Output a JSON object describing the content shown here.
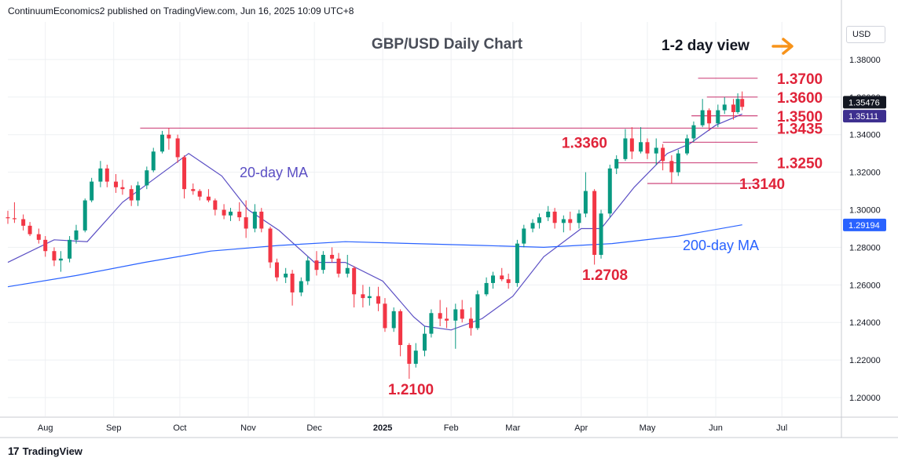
{
  "header": {
    "publisher_line": "ContinuumEconomics2 published on TradingView.com, Jun 16, 2025 10:09 UTC+8"
  },
  "footer": {
    "brand": "TradingView"
  },
  "currency_button": "USD",
  "colors": {
    "up": "#089981",
    "down": "#f23645",
    "ma20": "#5b4fc4",
    "ma200": "#2962ff",
    "level_line": "#c2185b",
    "annot_red": "#e0243a",
    "arrow": "#f7931a"
  },
  "chart_data": {
    "type": "candlestick",
    "title": "GBP/USD Daily Chart",
    "view_label": "1-2 day view",
    "ylim": [
      1.19,
      1.4
    ],
    "y_ticks": [
      "1.20000",
      "1.22000",
      "1.24000",
      "1.26000",
      "1.28000",
      "1.30000",
      "1.32000",
      "1.34000",
      "1.36000",
      "1.38000"
    ],
    "x_ticks": [
      "Aug",
      "Sep",
      "Oct",
      "Nov",
      "Dec",
      "2025",
      "Feb",
      "Mar",
      "Apr",
      "May",
      "Jun",
      "Jul"
    ],
    "x_range": [
      "2024-07-15",
      "2025-07-28"
    ],
    "last_price": "1.35476",
    "ma20_label_value": "1.35111",
    "ma200_label_value": "1.29194",
    "series": [
      {
        "name": "20-day MA",
        "points": [
          [
            "2024-07-15",
            1.272
          ],
          [
            "2024-08-05",
            1.284
          ],
          [
            "2024-08-20",
            1.283
          ],
          [
            "2024-09-05",
            1.304
          ],
          [
            "2024-09-20",
            1.317
          ],
          [
            "2024-10-05",
            1.33
          ],
          [
            "2024-10-20",
            1.318
          ],
          [
            "2024-11-01",
            1.3
          ],
          [
            "2024-11-15",
            1.289
          ],
          [
            "2024-12-01",
            1.272
          ],
          [
            "2024-12-15",
            1.272
          ],
          [
            "2025-01-01",
            1.262
          ],
          [
            "2025-01-15",
            1.243
          ],
          [
            "2025-01-20",
            1.238
          ],
          [
            "2025-02-01",
            1.236
          ],
          [
            "2025-02-15",
            1.242
          ],
          [
            "2025-03-01",
            1.254
          ],
          [
            "2025-03-15",
            1.275
          ],
          [
            "2025-04-01",
            1.29
          ],
          [
            "2025-04-10",
            1.29
          ],
          [
            "2025-04-25",
            1.312
          ],
          [
            "2025-05-10",
            1.33
          ],
          [
            "2025-05-20",
            1.335
          ],
          [
            "2025-06-01",
            1.345
          ],
          [
            "2025-06-13",
            1.351
          ]
        ]
      },
      {
        "name": "200-day MA",
        "points": [
          [
            "2024-07-15",
            1.259
          ],
          [
            "2024-08-15",
            1.265
          ],
          [
            "2024-09-15",
            1.272
          ],
          [
            "2024-10-15",
            1.278
          ],
          [
            "2024-11-15",
            1.281
          ],
          [
            "2024-12-15",
            1.283
          ],
          [
            "2025-01-15",
            1.282
          ],
          [
            "2025-02-15",
            1.281
          ],
          [
            "2025-03-15",
            1.28
          ],
          [
            "2025-04-15",
            1.282
          ],
          [
            "2025-05-15",
            1.286
          ],
          [
            "2025-06-13",
            1.292
          ]
        ]
      }
    ],
    "candles": [
      [
        "2024-07-15",
        1.296,
        1.2995,
        1.2925,
        1.2955
      ],
      [
        "2024-07-18",
        1.2955,
        1.304,
        1.293,
        1.295
      ],
      [
        "2024-07-22",
        1.295,
        1.2975,
        1.289,
        1.2915
      ],
      [
        "2024-07-25",
        1.2915,
        1.2935,
        1.286,
        1.287
      ],
      [
        "2024-07-29",
        1.287,
        1.29,
        1.282,
        1.284
      ],
      [
        "2024-08-01",
        1.284,
        1.286,
        1.275,
        1.278
      ],
      [
        "2024-08-05",
        1.278,
        1.28,
        1.27,
        1.273
      ],
      [
        "2024-08-08",
        1.273,
        1.278,
        1.267,
        1.274
      ],
      [
        "2024-08-12",
        1.274,
        1.286,
        1.272,
        1.284
      ],
      [
        "2024-08-15",
        1.284,
        1.292,
        1.282,
        1.289
      ],
      [
        "2024-08-19",
        1.289,
        1.306,
        1.288,
        1.305
      ],
      [
        "2024-08-22",
        1.305,
        1.317,
        1.304,
        1.315
      ],
      [
        "2024-08-26",
        1.315,
        1.326,
        1.312,
        1.322
      ],
      [
        "2024-08-29",
        1.322,
        1.324,
        1.312,
        1.315
      ],
      [
        "2024-09-02",
        1.315,
        1.319,
        1.309,
        1.312
      ],
      [
        "2024-09-05",
        1.312,
        1.316,
        1.308,
        1.311
      ],
      [
        "2024-09-09",
        1.311,
        1.313,
        1.302,
        1.305
      ],
      [
        "2024-09-12",
        1.305,
        1.315,
        1.302,
        1.313
      ],
      [
        "2024-09-16",
        1.313,
        1.323,
        1.311,
        1.321
      ],
      [
        "2024-09-19",
        1.321,
        1.333,
        1.32,
        1.331
      ],
      [
        "2024-09-23",
        1.331,
        1.342,
        1.33,
        1.34
      ],
      [
        "2024-09-26",
        1.34,
        1.3435,
        1.332,
        1.338
      ],
      [
        "2024-09-30",
        1.338,
        1.34,
        1.325,
        1.328
      ],
      [
        "2024-10-03",
        1.328,
        1.329,
        1.306,
        1.311
      ],
      [
        "2024-10-07",
        1.311,
        1.314,
        1.308,
        1.31
      ],
      [
        "2024-10-10",
        1.31,
        1.311,
        1.305,
        1.307
      ],
      [
        "2024-10-14",
        1.307,
        1.311,
        1.304,
        1.305
      ],
      [
        "2024-10-17",
        1.305,
        1.306,
        1.297,
        1.3
      ],
      [
        "2024-10-21",
        1.3,
        1.303,
        1.295,
        1.297
      ],
      [
        "2024-10-24",
        1.297,
        1.301,
        1.294,
        1.299
      ],
      [
        "2024-10-28",
        1.299,
        1.304,
        1.294,
        1.296
      ],
      [
        "2024-10-31",
        1.296,
        1.305,
        1.285,
        1.29
      ],
      [
        "2024-11-04",
        1.29,
        1.303,
        1.288,
        1.299
      ],
      [
        "2024-11-07",
        1.299,
        1.301,
        1.288,
        1.29
      ],
      [
        "2024-11-11",
        1.29,
        1.291,
        1.269,
        1.272
      ],
      [
        "2024-11-14",
        1.272,
        1.274,
        1.262,
        1.264
      ],
      [
        "2024-11-18",
        1.264,
        1.269,
        1.261,
        1.266
      ],
      [
        "2024-11-21",
        1.266,
        1.268,
        1.249,
        1.256
      ],
      [
        "2024-11-25",
        1.256,
        1.264,
        1.254,
        1.262
      ],
      [
        "2024-11-28",
        1.262,
        1.275,
        1.26,
        1.273
      ],
      [
        "2024-12-02",
        1.273,
        1.278,
        1.265,
        1.268
      ],
      [
        "2024-12-05",
        1.268,
        1.278,
        1.266,
        1.276
      ],
      [
        "2024-12-09",
        1.276,
        1.28,
        1.272,
        1.274
      ],
      [
        "2024-12-12",
        1.274,
        1.277,
        1.264,
        1.266
      ],
      [
        "2024-12-16",
        1.266,
        1.276,
        1.264,
        1.269
      ],
      [
        "2024-12-19",
        1.269,
        1.27,
        1.248,
        1.255
      ],
      [
        "2024-12-23",
        1.255,
        1.26,
        1.248,
        1.253
      ],
      [
        "2024-12-26",
        1.253,
        1.259,
        1.249,
        1.254
      ],
      [
        "2024-12-30",
        1.254,
        1.259,
        1.246,
        1.25
      ],
      [
        "2025-01-02",
        1.25,
        1.253,
        1.235,
        1.237
      ],
      [
        "2025-01-06",
        1.237,
        1.248,
        1.235,
        1.246
      ],
      [
        "2025-01-09",
        1.246,
        1.247,
        1.222,
        1.228
      ],
      [
        "2025-01-13",
        1.228,
        1.229,
        1.21,
        1.218
      ],
      [
        "2025-01-16",
        1.218,
        1.229,
        1.216,
        1.225
      ],
      [
        "2025-01-20",
        1.225,
        1.238,
        1.222,
        1.234
      ],
      [
        "2025-01-23",
        1.234,
        1.247,
        1.232,
        1.245
      ],
      [
        "2025-01-27",
        1.245,
        1.252,
        1.238,
        1.242
      ],
      [
        "2025-01-30",
        1.242,
        1.248,
        1.237,
        1.241
      ],
      [
        "2025-02-03",
        1.241,
        1.25,
        1.226,
        1.247
      ],
      [
        "2025-02-06",
        1.247,
        1.252,
        1.24,
        1.242
      ],
      [
        "2025-02-10",
        1.242,
        1.248,
        1.233,
        1.237
      ],
      [
        "2025-02-13",
        1.237,
        1.257,
        1.236,
        1.255
      ],
      [
        "2025-02-17",
        1.255,
        1.264,
        1.254,
        1.261
      ],
      [
        "2025-02-20",
        1.261,
        1.267,
        1.258,
        1.265
      ],
      [
        "2025-02-24",
        1.265,
        1.269,
        1.262,
        1.263
      ],
      [
        "2025-02-27",
        1.263,
        1.266,
        1.258,
        1.261
      ],
      [
        "2025-03-03",
        1.261,
        1.284,
        1.259,
        1.282
      ],
      [
        "2025-03-06",
        1.282,
        1.292,
        1.28,
        1.29
      ],
      [
        "2025-03-10",
        1.29,
        1.295,
        1.288,
        1.293
      ],
      [
        "2025-03-13",
        1.293,
        1.298,
        1.29,
        1.296
      ],
      [
        "2025-03-17",
        1.296,
        1.302,
        1.294,
        1.299
      ],
      [
        "2025-03-20",
        1.299,
        1.301,
        1.29,
        1.293
      ],
      [
        "2025-03-24",
        1.293,
        1.297,
        1.288,
        1.295
      ],
      [
        "2025-03-27",
        1.295,
        1.299,
        1.289,
        1.293
      ],
      [
        "2025-03-31",
        1.293,
        1.3,
        1.29,
        1.298
      ],
      [
        "2025-04-03",
        1.298,
        1.32,
        1.296,
        1.31
      ],
      [
        "2025-04-07",
        1.31,
        1.311,
        1.2708,
        1.276
      ],
      [
        "2025-04-10",
        1.276,
        1.3,
        1.274,
        1.298
      ],
      [
        "2025-04-14",
        1.298,
        1.324,
        1.296,
        1.322
      ],
      [
        "2025-04-17",
        1.322,
        1.329,
        1.319,
        1.327
      ],
      [
        "2025-04-21",
        1.327,
        1.343,
        1.326,
        1.338
      ],
      [
        "2025-04-24",
        1.338,
        1.344,
        1.327,
        1.331
      ],
      [
        "2025-04-28",
        1.331,
        1.344,
        1.33,
        1.336
      ],
      [
        "2025-05-01",
        1.336,
        1.338,
        1.327,
        1.33
      ],
      [
        "2025-05-05",
        1.33,
        1.338,
        1.324,
        1.333
      ],
      [
        "2025-05-08",
        1.333,
        1.335,
        1.321,
        1.326
      ],
      [
        "2025-05-12",
        1.326,
        1.329,
        1.314,
        1.32
      ],
      [
        "2025-05-15",
        1.32,
        1.332,
        1.318,
        1.33
      ],
      [
        "2025-05-19",
        1.33,
        1.34,
        1.329,
        1.338
      ],
      [
        "2025-05-22",
        1.338,
        1.347,
        1.336,
        1.345
      ],
      [
        "2025-05-26",
        1.345,
        1.359,
        1.344,
        1.353
      ],
      [
        "2025-05-29",
        1.353,
        1.354,
        1.342,
        1.346
      ],
      [
        "2025-06-02",
        1.346,
        1.356,
        1.344,
        1.353
      ],
      [
        "2025-06-05",
        1.353,
        1.36,
        1.351,
        1.356
      ],
      [
        "2025-06-09",
        1.356,
        1.359,
        1.348,
        1.352
      ],
      [
        "2025-06-11",
        1.352,
        1.362,
        1.351,
        1.359
      ],
      [
        "2025-06-13",
        1.359,
        1.363,
        1.353,
        1.3548
      ]
    ],
    "levels": [
      {
        "label": "1.3700",
        "value": 1.37,
        "from": "2025-05-24"
      },
      {
        "label": "1.3600",
        "value": 1.36,
        "from": "2025-05-28"
      },
      {
        "label": "1.3500",
        "value": 1.35,
        "from": "2025-05-21"
      },
      {
        "label": "1.3435",
        "value": 1.3435,
        "from": "2024-09-13"
      },
      {
        "label": "1.3360",
        "value": 1.336,
        "from": "2025-05-08"
      },
      {
        "label": "1.3250",
        "value": 1.325,
        "from": "2025-04-17"
      },
      {
        "label": "1.3140",
        "value": 1.314,
        "from": "2025-05-01"
      }
    ],
    "annotations": [
      {
        "text": "20-day MA",
        "color": "ma20"
      },
      {
        "text": "200-day MA",
        "color": "ma200"
      },
      {
        "text": "1.2708",
        "color": "annot_red"
      },
      {
        "text": "1.2100",
        "color": "annot_red"
      }
    ]
  }
}
